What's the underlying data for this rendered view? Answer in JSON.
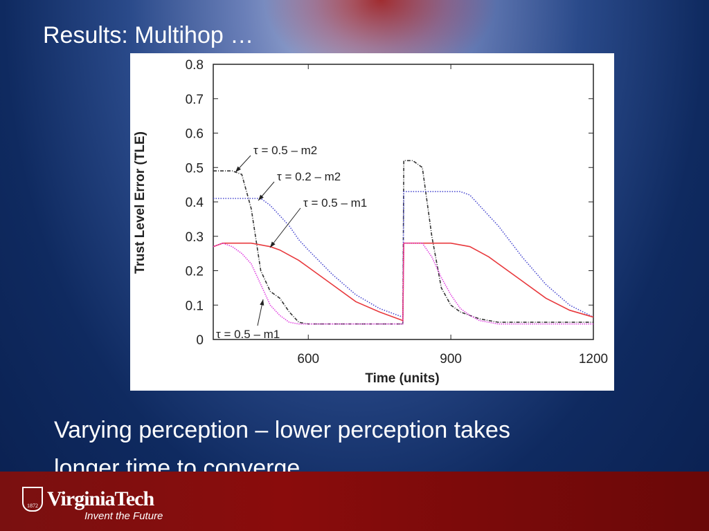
{
  "slide": {
    "title": "Results: Multihop …",
    "caption": [
      "Varying perception – lower perception takes",
      "longer time to converge."
    ],
    "logo": {
      "name": "VirginiaTech",
      "tagline": "Invent the Future",
      "year": "1872"
    }
  },
  "chart_data": {
    "type": "line",
    "xlabel": "Time (units)",
    "ylabel": "Trust Level Error (TLE)",
    "xlim": [
      400,
      1200
    ],
    "ylim": [
      0,
      0.8
    ],
    "xticks": [
      600,
      900,
      1200
    ],
    "yticks": [
      0,
      0.1,
      0.2,
      0.3,
      0.4,
      0.5,
      0.6,
      0.7,
      0.8
    ],
    "x": [
      400,
      420,
      440,
      460,
      480,
      500,
      520,
      540,
      560,
      580,
      600,
      650,
      700,
      750,
      799,
      801,
      820,
      840,
      860,
      880,
      900,
      920,
      940,
      960,
      980,
      1000,
      1050,
      1100,
      1150,
      1200
    ],
    "series": [
      {
        "name": "τ = 0.5 – m2",
        "color": "#333333",
        "dash": "5 2 1 2",
        "values": [
          0.49,
          0.49,
          0.49,
          0.48,
          0.38,
          0.2,
          0.14,
          0.12,
          0.08,
          0.05,
          0.045,
          0.045,
          0.045,
          0.045,
          0.045,
          0.52,
          0.52,
          0.5,
          0.3,
          0.15,
          0.1,
          0.08,
          0.07,
          0.06,
          0.055,
          0.05,
          0.05,
          0.05,
          0.05,
          0.05
        ]
      },
      {
        "name": "τ = 0.2 – m2",
        "color": "#4a4ad0",
        "dash": "1.5 2",
        "values": [
          0.41,
          0.41,
          0.41,
          0.41,
          0.41,
          0.41,
          0.39,
          0.36,
          0.33,
          0.29,
          0.26,
          0.19,
          0.13,
          0.09,
          0.065,
          0.43,
          0.43,
          0.43,
          0.43,
          0.43,
          0.43,
          0.43,
          0.42,
          0.39,
          0.36,
          0.33,
          0.24,
          0.16,
          0.1,
          0.065
        ]
      },
      {
        "name": "τ = 0.5 – m1",
        "color": "#e8383c",
        "dash": "none",
        "values": [
          0.27,
          0.28,
          0.28,
          0.28,
          0.28,
          0.275,
          0.27,
          0.26,
          0.245,
          0.23,
          0.21,
          0.16,
          0.11,
          0.08,
          0.055,
          0.28,
          0.28,
          0.28,
          0.28,
          0.28,
          0.28,
          0.275,
          0.27,
          0.255,
          0.24,
          0.22,
          0.17,
          0.12,
          0.085,
          0.065
        ]
      },
      {
        "name": "τ = 0.5 – m1",
        "color": "#e040e0",
        "dash": "1.5 1.5",
        "values": [
          0.27,
          0.28,
          0.27,
          0.25,
          0.22,
          0.16,
          0.1,
          0.07,
          0.05,
          0.045,
          0.045,
          0.045,
          0.045,
          0.045,
          0.045,
          0.28,
          0.28,
          0.28,
          0.24,
          0.18,
          0.13,
          0.09,
          0.07,
          0.055,
          0.05,
          0.045,
          0.045,
          0.045,
          0.045,
          0.045
        ]
      }
    ]
  }
}
